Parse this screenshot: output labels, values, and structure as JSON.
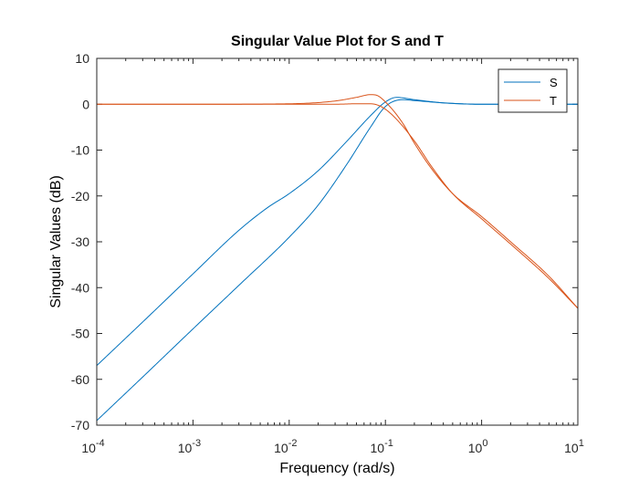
{
  "chart_data": {
    "type": "line",
    "title": "Singular Value Plot for S and T",
    "xlabel": "Frequency (rad/s)",
    "ylabel": "Singular Values (dB)",
    "xscale": "log",
    "xlim": [
      0.0001,
      10
    ],
    "ylim": [
      -70,
      10
    ],
    "x_ticks": [
      {
        "value": 0.0001,
        "base": "10",
        "exp": "-4"
      },
      {
        "value": 0.001,
        "base": "10",
        "exp": "-3"
      },
      {
        "value": 0.01,
        "base": "10",
        "exp": "-2"
      },
      {
        "value": 0.1,
        "base": "10",
        "exp": "-1"
      },
      {
        "value": 1,
        "base": "10",
        "exp": "0"
      },
      {
        "value": 10,
        "base": "10",
        "exp": "1"
      }
    ],
    "y_ticks": [
      "10",
      "0",
      "-10",
      "-20",
      "-30",
      "-40",
      "-50",
      "-60",
      "-70"
    ],
    "grid": false,
    "legend": "top-right",
    "series": [
      {
        "name": "S",
        "color": "#0072BD",
        "lines": [
          {
            "x": [
              0.0001,
              0.0003,
              0.001,
              0.003,
              0.006,
              0.01,
              0.02,
              0.04,
              0.07,
              0.1,
              0.13,
              0.2,
              0.4,
              1,
              3,
              10
            ],
            "y": [
              -57,
              -47.5,
              -37,
              -27.5,
              -22.5,
              -19.5,
              -14.5,
              -8,
              -2.5,
              0.5,
              1.5,
              1.0,
              0.3,
              0.0,
              0.0,
              0.0
            ]
          },
          {
            "x": [
              0.0001,
              0.0003,
              0.001,
              0.003,
              0.01,
              0.02,
              0.04,
              0.07,
              0.1,
              0.15,
              0.2,
              0.4,
              1,
              3,
              10
            ],
            "y": [
              -69,
              -59.5,
              -49,
              -39.5,
              -29,
              -22,
              -13,
              -5,
              -0.5,
              1.0,
              0.8,
              0.3,
              0.0,
              0.0,
              0.0
            ]
          }
        ]
      },
      {
        "name": "T",
        "color": "#D95319",
        "lines": [
          {
            "x": [
              0.0001,
              0.001,
              0.01,
              0.03,
              0.05,
              0.07,
              0.08,
              0.1,
              0.15,
              0.2,
              0.3,
              0.5,
              1,
              2,
              5,
              10
            ],
            "y": [
              0,
              0,
              0.1,
              0.7,
              1.5,
              2.1,
              2.0,
              0.5,
              -4,
              -8.5,
              -14,
              -19.5,
              -24.5,
              -30,
              -37.5,
              -44.5
            ]
          },
          {
            "x": [
              0.0001,
              0.001,
              0.01,
              0.03,
              0.05,
              0.07,
              0.09,
              0.12,
              0.2,
              0.3,
              0.5,
              1,
              2,
              5,
              10
            ],
            "y": [
              0,
              0,
              0,
              0,
              0.1,
              0.1,
              -0.5,
              -2.5,
              -8,
              -13.5,
              -19.5,
              -25,
              -30.5,
              -38,
              -44.5
            ]
          }
        ]
      }
    ]
  }
}
